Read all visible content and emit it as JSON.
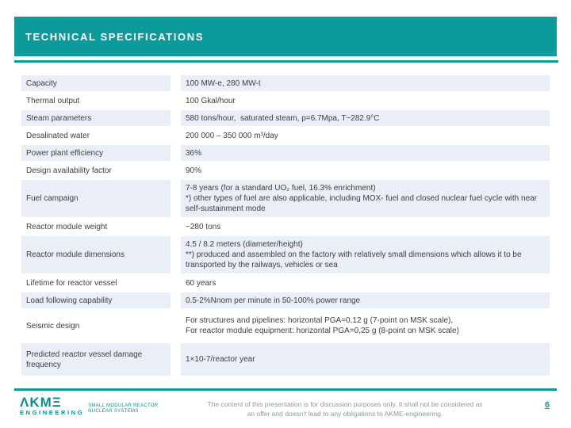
{
  "slide": {
    "title": "TECHNICAL SPECIFICATIONS"
  },
  "table": {
    "rows": [
      {
        "label": "Capacity",
        "value": "100 MW-e, 280 MW-t"
      },
      {
        "label": "Thermal output",
        "value": "100 Gkal/hour"
      },
      {
        "label": "Steam parameters",
        "value": "580 tons/hour,  saturated steam, p=6.7Mpa, T~282.9°C"
      },
      {
        "label": "Desalinated water",
        "value": "200 000 – 350 000 m³/day"
      },
      {
        "label": "Power plant efficiency",
        "value": "36%"
      },
      {
        "label": "Design availability factor",
        "value": "90%"
      },
      {
        "label": "Fuel campaign",
        "value": "7-8 years (for a standard UO₂ fuel, 16.3% enrichment)\n*) other types of fuel are also applicable, including MOX- fuel and closed nuclear fuel cycle with near self-sustainment mode"
      },
      {
        "label": "Reactor module weight",
        "value": "~280 tons"
      },
      {
        "label": "Reactor module dimensions",
        "value": "4.5 / 8.2 meters (diameter/height)\n**) produced and assembled on the factory with relatively small dimensions which allows it to be transported by the railways, vehicles or sea"
      },
      {
        "label": "Lifetime for reactor vessel",
        "value": "60 years"
      },
      {
        "label": "Load following capability",
        "value": "0.5-2%Nnom per minute in 50-100% power range"
      },
      {
        "label": "Seismic design",
        "value": "For structures and pipelines: horizontal PGA=0,12 g (7-point on MSK scale),\nFor reactor module equipment: horizontal PGA=0,25 g (8-point on MSK scale)"
      },
      {
        "label": "Predicted reactor vessel damage frequency",
        "value": "1×10-7/reactor year"
      }
    ]
  },
  "footer": {
    "logo": {
      "wordmark": "ΛKMΞ",
      "subtitle": "ENGINEERING",
      "tagline": "SMALL MODULAR REACTOR\nNUCLEAR SYSTEMS"
    },
    "disclaimer": "The content of this presentation is for discussion purposes only. It shall not be considered as\nan offer and doesn't lead to any obligations to AKME-engineering.",
    "page_number": "6"
  },
  "colors": {
    "teal": "#0d9a9a",
    "row_alt_background": "#e9eef7",
    "table_text": "#3f3f3f",
    "disclaimer_text": "#8d999c"
  }
}
